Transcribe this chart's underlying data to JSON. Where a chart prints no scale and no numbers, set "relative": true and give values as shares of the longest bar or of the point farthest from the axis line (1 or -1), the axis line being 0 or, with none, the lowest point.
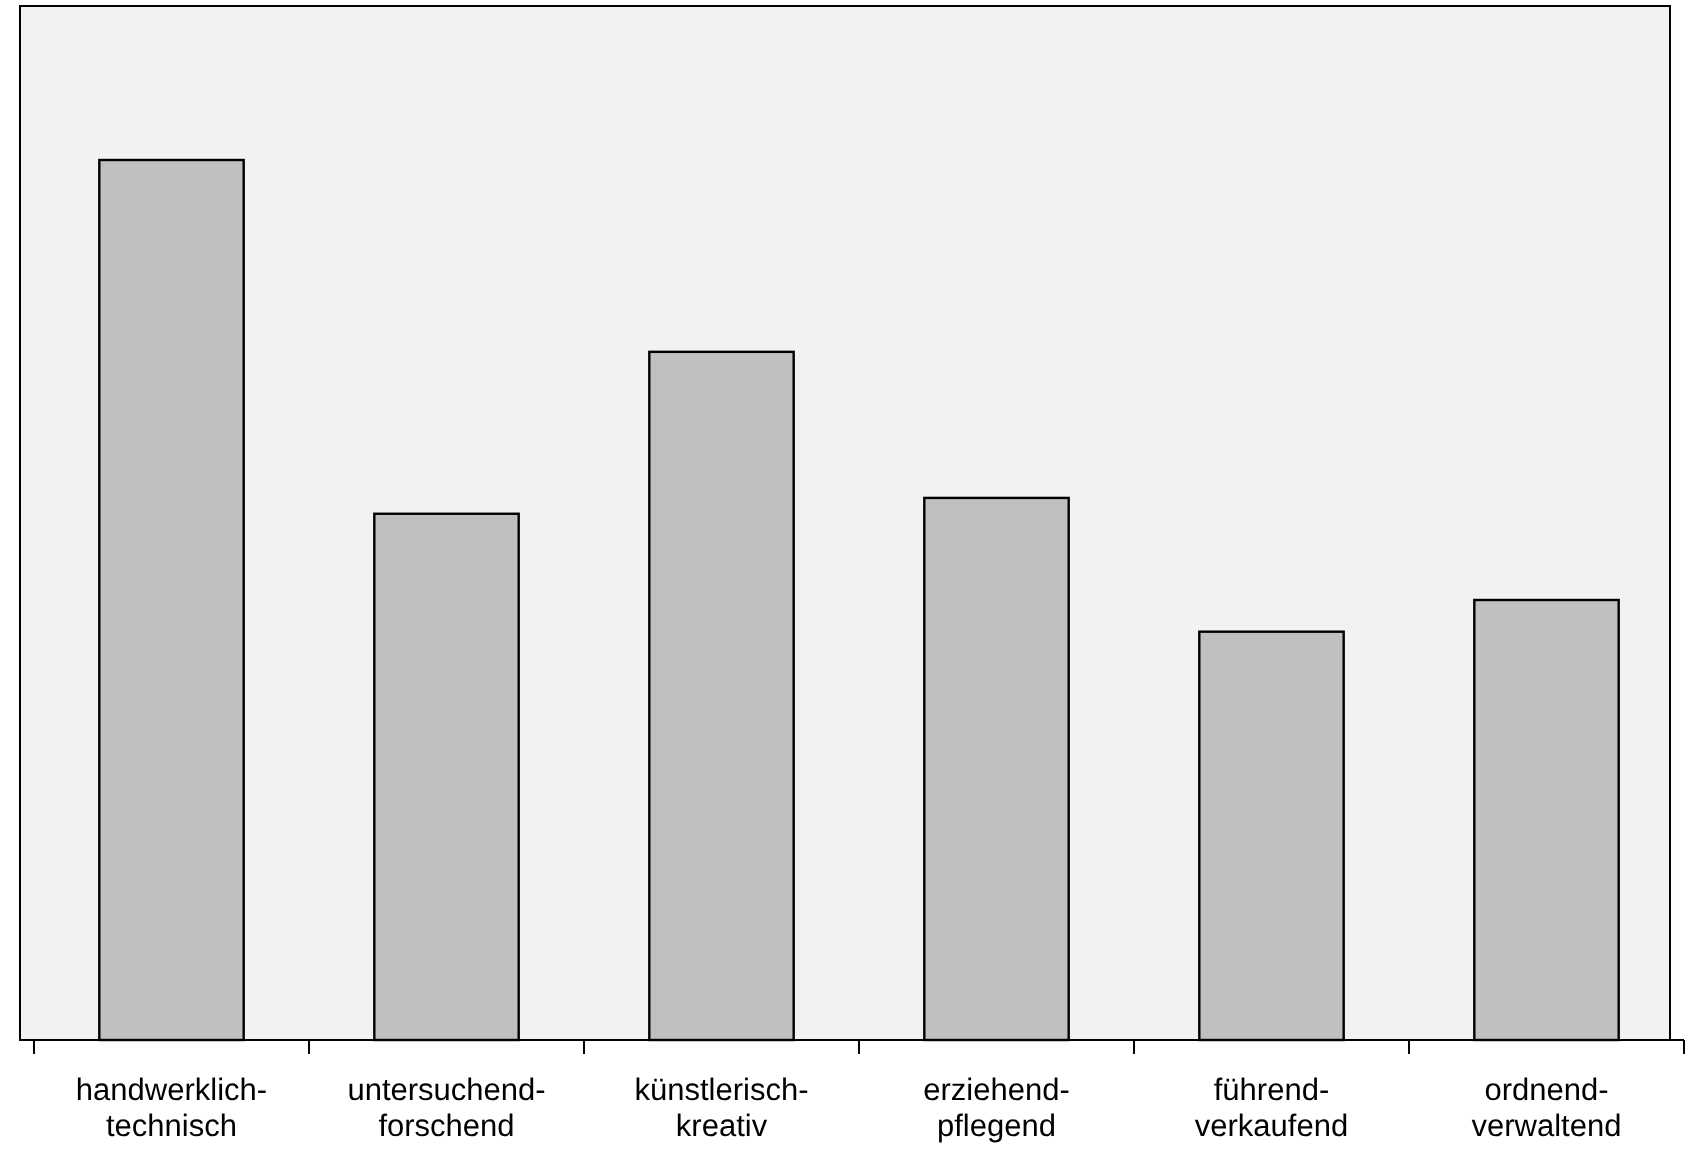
{
  "chart_data": {
    "type": "bar",
    "relative": true,
    "categories": [
      "handwerklich-\ntechnisch",
      "untersuchend-\nforschend",
      "künstlerisch-\nkreativ",
      "erziehend-\npflegend",
      "führend-\nverkaufend",
      "ordnend-\nverwaltend"
    ],
    "values": [
      1,
      0.598,
      0.782,
      0.616,
      0.464,
      0.5
    ],
    "color": "#c0c0c0"
  }
}
